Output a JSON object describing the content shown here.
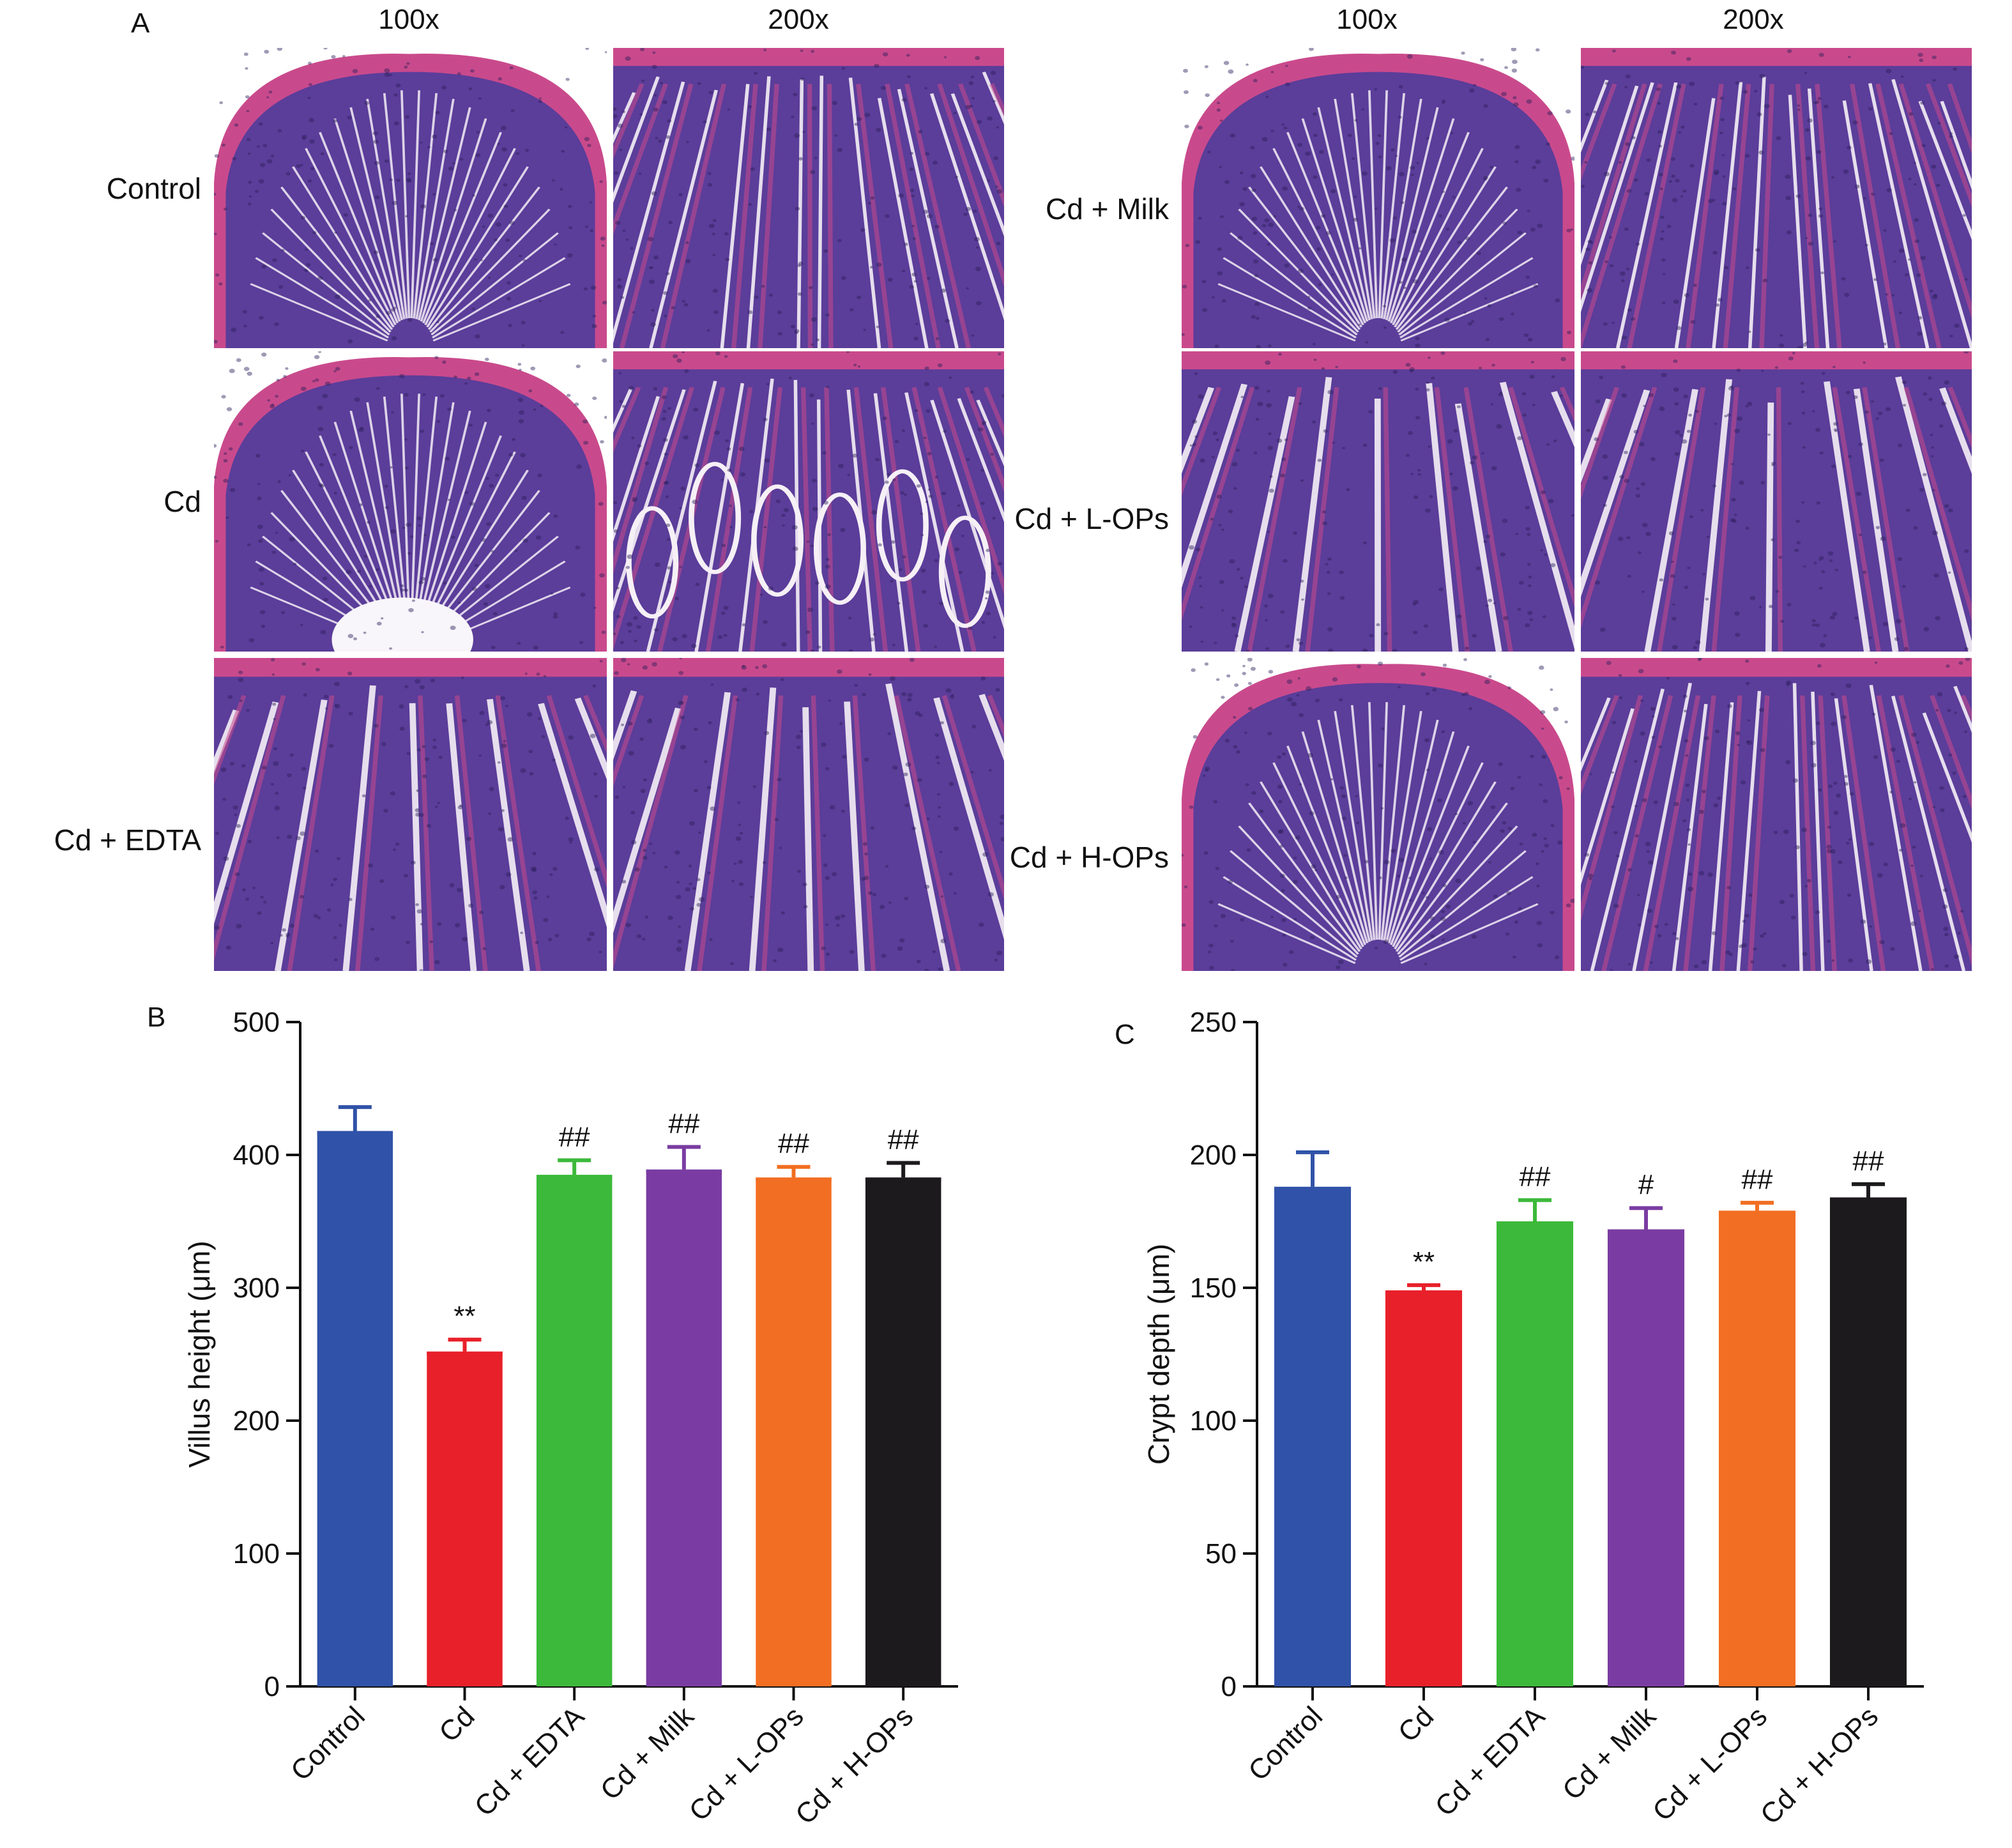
{
  "panels": {
    "a": "A",
    "b": "B",
    "c": "C"
  },
  "magnifications": [
    "100x",
    "200x"
  ],
  "left_groups": [
    "Control",
    "Cd",
    "Cd + EDTA"
  ],
  "right_groups": [
    "Cd + Milk",
    "Cd + L-OPs",
    "Cd + H-OPs"
  ],
  "colors": {
    "control": "#3052a8",
    "cd": "#e8202a",
    "cd_edta": "#3cb93a",
    "cd_milk": "#7a3ca2",
    "cd_lops": "#f26e22",
    "cd_hops": "#1c1a1c",
    "tissue_pink": "#c94a8c",
    "tissue_purple": "#5b3d9a"
  },
  "chart_data": [
    {
      "type": "bar",
      "panel": "B",
      "categories": [
        "Control",
        "Cd",
        "Cd + EDTA",
        "Cd + Milk",
        "Cd + L-OPs",
        "Cd + H-OPs"
      ],
      "values": [
        418,
        252,
        385,
        389,
        383,
        383
      ],
      "errors": [
        18,
        9,
        11,
        17,
        8,
        11
      ],
      "annotations": [
        "",
        "**",
        "##",
        "##",
        "##",
        "##"
      ],
      "ylabel": "Villus height (μm)",
      "ylim": [
        0,
        500
      ],
      "yticks": [
        0,
        100,
        200,
        300,
        400,
        500
      ],
      "grid": false
    },
    {
      "type": "bar",
      "panel": "C",
      "categories": [
        "Control",
        "Cd",
        "Cd + EDTA",
        "Cd + Milk",
        "Cd + L-OPs",
        "Cd + H-OPs"
      ],
      "values": [
        188,
        149,
        175,
        172,
        179,
        184
      ],
      "errors": [
        13,
        2,
        8,
        8,
        3,
        5
      ],
      "annotations": [
        "",
        "**",
        "##",
        "#",
        "##",
        "##"
      ],
      "ylabel": "Crypt depth (μm)",
      "ylim": [
        0,
        250
      ],
      "yticks": [
        0,
        50,
        100,
        150,
        200,
        250
      ],
      "grid": false
    }
  ]
}
